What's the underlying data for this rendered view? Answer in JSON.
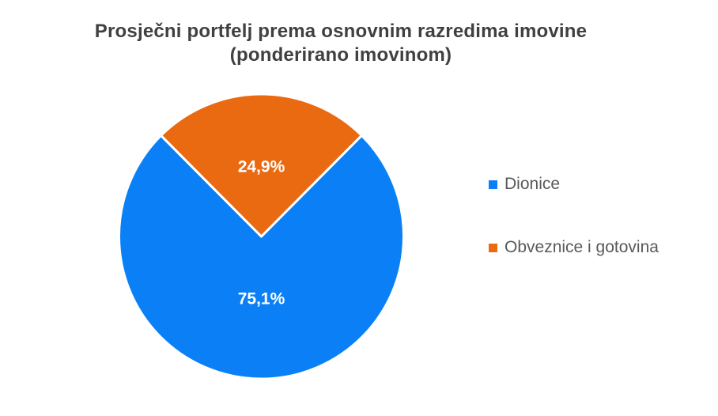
{
  "page": {
    "background": "#ffffff"
  },
  "title": {
    "line1": "Prosječni portfelj prema osnovnim razredima imovine",
    "line2": "(ponderirano imovinom)",
    "color": "#404040"
  },
  "legend": {
    "position": "right",
    "text_color": "#595959",
    "items": [
      {
        "label": "Dionice",
        "color": "#0b80f6"
      },
      {
        "label": "Obveznice i gotovina",
        "color": "#ea6a12"
      }
    ]
  },
  "chart_data": {
    "type": "pie",
    "title": "Prosječni portfelj prema osnovnim razredima imovine (ponderirano imovinom)",
    "categories": [
      "Dionice",
      "Obveznice i gotovina"
    ],
    "values": [
      75.1,
      24.9
    ],
    "value_labels": [
      "75,1%",
      "24,9%"
    ],
    "colors": [
      "#0b80f6",
      "#ea6a12"
    ],
    "slice_label_color": "#ffffff",
    "separator_color": "#ffffff",
    "legend_position": "right",
    "rotation_deg": 44.8,
    "label_radius_fractions": [
      0.44,
      0.49
    ]
  }
}
